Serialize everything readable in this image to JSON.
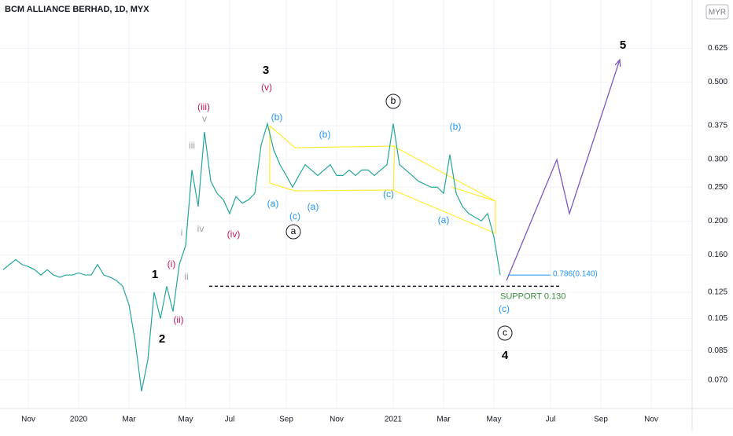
{
  "chart_data": {
    "type": "line",
    "title": "BCM ALLIANCE BERHAD, 1D, MYX",
    "currency": "MYR",
    "color": "#26a69a",
    "log_scale": true,
    "categories": [
      null,
      null,
      null,
      null,
      "Nov",
      null,
      null,
      null,
      null,
      null,
      null,
      null,
      "2020",
      null,
      null,
      null,
      null,
      null,
      null,
      null,
      "Mar",
      null,
      null,
      null,
      null,
      null,
      null,
      null,
      null,
      "May",
      null,
      null,
      null,
      null,
      null,
      null,
      "Jul",
      null,
      null,
      null,
      null,
      null,
      null,
      null,
      null,
      "Sep",
      null,
      null,
      null,
      null,
      null,
      null,
      null,
      "Nov",
      null,
      null,
      null,
      null,
      null,
      null,
      null,
      null,
      "2021",
      null,
      null,
      null,
      null,
      null,
      null,
      null,
      "Mar",
      null,
      null,
      null,
      null,
      null,
      null,
      null,
      "May",
      null,
      null,
      null,
      null,
      null,
      null,
      null,
      null,
      "Jul",
      null,
      null,
      null,
      null,
      null,
      null,
      null,
      "Sep",
      null,
      null,
      null,
      null,
      null,
      null,
      null,
      "Nov",
      null,
      null,
      null,
      null,
      null,
      null
    ],
    "values": [
      0.145,
      0.15,
      0.155,
      0.15,
      0.148,
      0.145,
      0.14,
      0.145,
      0.14,
      0.138,
      0.14,
      0.14,
      0.142,
      0.14,
      0.14,
      0.15,
      0.14,
      0.138,
      0.135,
      0.13,
      0.115,
      0.09,
      0.065,
      0.08,
      0.125,
      0.105,
      0.13,
      0.11,
      0.15,
      0.17,
      0.28,
      0.22,
      0.36,
      0.26,
      0.24,
      0.23,
      0.21,
      0.235,
      0.225,
      0.23,
      0.24,
      0.33,
      0.38,
      0.32,
      0.29,
      0.27,
      0.25,
      0.27,
      0.29,
      0.28,
      0.27,
      0.28,
      0.29,
      0.27,
      0.27,
      0.28,
      0.27,
      0.28,
      0.28,
      0.27,
      0.28,
      0.29,
      0.38,
      0.29,
      0.28,
      0.27,
      0.26,
      0.255,
      0.25,
      0.25,
      0.24,
      0.31,
      0.24,
      0.22,
      0.21,
      0.205,
      0.2,
      0.21,
      0.18,
      0.14,
      null,
      null,
      null,
      null,
      null,
      null,
      null,
      null,
      null,
      null,
      null,
      null,
      null,
      null,
      null,
      null,
      null,
      null,
      null,
      null,
      null,
      null,
      null,
      null,
      null,
      null,
      null,
      null,
      null,
      null
    ],
    "projection": [
      null,
      null,
      null,
      null,
      null,
      null,
      null,
      null,
      null,
      null,
      null,
      null,
      null,
      null,
      null,
      null,
      null,
      null,
      null,
      null,
      null,
      null,
      null,
      null,
      null,
      null,
      null,
      null,
      null,
      null,
      null,
      null,
      null,
      null,
      null,
      null,
      null,
      null,
      null,
      null,
      null,
      null,
      null,
      null,
      null,
      null,
      null,
      null,
      null,
      null,
      null,
      null,
      null,
      null,
      null,
      null,
      null,
      null,
      null,
      null,
      null,
      null,
      null,
      null,
      null,
      null,
      null,
      null,
      null,
      null,
      null,
      null,
      null,
      null,
      null,
      null,
      null,
      null,
      null,
      null,
      0.135,
      null,
      null,
      null,
      null,
      null,
      null,
      null,
      0.3,
      null,
      0.21,
      null,
      null,
      null,
      null,
      null,
      null,
      null,
      0.58,
      null,
      null,
      null,
      null,
      null,
      null,
      null,
      null,
      null,
      null,
      null
    ],
    "projection_color": "#7e57c2",
    "ylim": [
      0.058,
      0.86
    ],
    "yticks": [
      {
        "value": 0.07,
        "label": "0.070"
      },
      {
        "value": 0.085,
        "label": "0.085"
      },
      {
        "value": 0.105,
        "label": "0.105"
      },
      {
        "value": 0.125,
        "label": "0.125"
      },
      {
        "value": 0.16,
        "label": "0.160"
      },
      {
        "value": 0.2,
        "label": "0.200"
      },
      {
        "value": 0.25,
        "label": "0.250"
      },
      {
        "value": 0.3,
        "label": "0.300"
      },
      {
        "value": 0.375,
        "label": "0.375"
      },
      {
        "value": 0.5,
        "label": "0.500"
      },
      {
        "value": 0.625,
        "label": "0.625"
      }
    ],
    "grid": true,
    "support": {
      "value": 0.13,
      "label": "SUPPORT 0.130"
    },
    "fib": {
      "value": 0.14,
      "label": "0.786(0.140)"
    },
    "annotations": [
      {
        "text": "3",
        "color": "#000000"
      },
      {
        "text": "1",
        "color": "#000000"
      },
      {
        "text": "2",
        "color": "#000000"
      },
      {
        "text": "4",
        "color": "#000000"
      },
      {
        "text": "5",
        "color": "#000000"
      },
      {
        "text": "(iii)",
        "color": "#c2185b"
      },
      {
        "text": "(v)",
        "color": "#c2185b"
      },
      {
        "text": "(i)",
        "color": "#c2185b"
      },
      {
        "text": "(ii)",
        "color": "#c2185b"
      },
      {
        "text": "(iv)",
        "color": "#c2185b"
      },
      {
        "text": "v",
        "color": "#9e9e9e"
      },
      {
        "text": "iii",
        "color": "#9e9e9e"
      },
      {
        "text": "i",
        "color": "#9e9e9e"
      },
      {
        "text": "iv",
        "color": "#9e9e9e"
      },
      {
        "text": "ii",
        "color": "#9e9e9e"
      },
      {
        "text": "(b)",
        "color": "#2196f3"
      },
      {
        "text": "(b)",
        "color": "#2196f3"
      },
      {
        "text": "(a)",
        "color": "#2196f3"
      },
      {
        "text": "(c)",
        "color": "#2196f3"
      },
      {
        "text": "(a)",
        "color": "#2196f3"
      },
      {
        "text": "(c)",
        "color": "#2196f3"
      },
      {
        "text": "(b)",
        "color": "#2196f3"
      },
      {
        "text": "(a)",
        "color": "#2196f3"
      },
      {
        "text": "(c)",
        "color": "#2196f3"
      },
      {
        "text": "a",
        "color": "#000000",
        "circled": true
      },
      {
        "text": "b",
        "color": "#000000",
        "circled": true
      },
      {
        "text": "c",
        "color": "#000000",
        "circled": true
      }
    ]
  }
}
